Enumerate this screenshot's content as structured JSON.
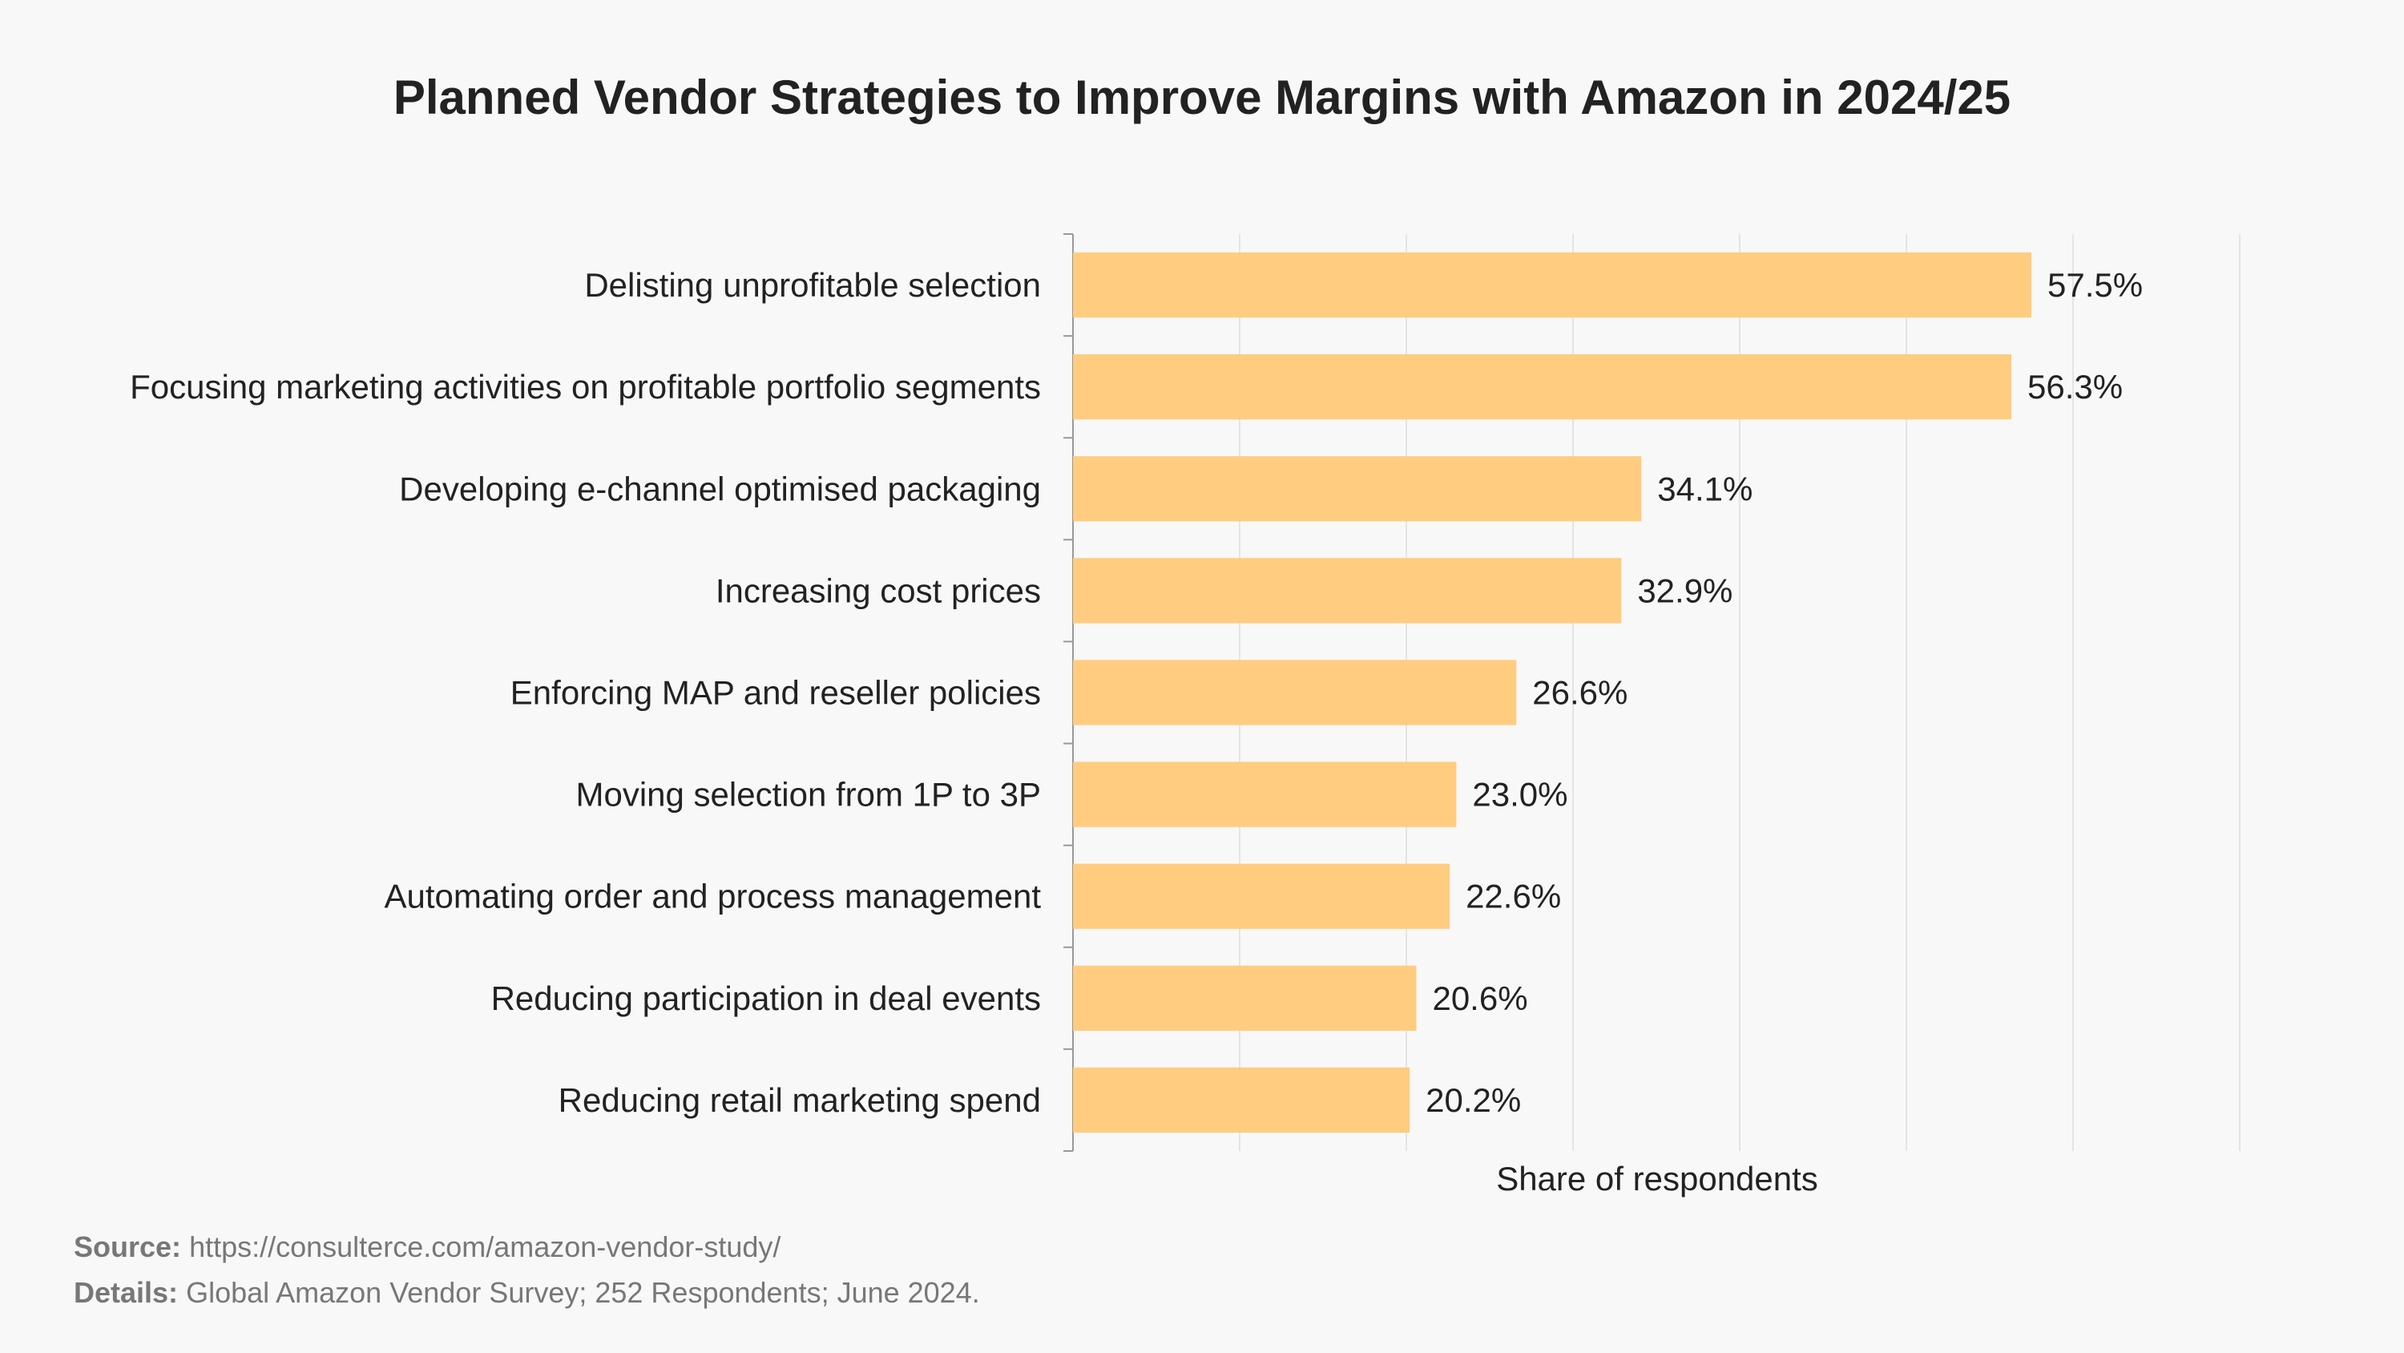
{
  "chart_data": {
    "type": "bar",
    "orientation": "horizontal",
    "title": "Planned Vendor Strategies to Improve Margins with Amazon in 2024/25",
    "xlabel": "Share of respondents",
    "ylabel": "",
    "xlim": [
      0,
      70
    ],
    "grid": true,
    "bar_color": "#ffcc80",
    "categories": [
      "Delisting unprofitable selection",
      "Focusing marketing activities on profitable portfolio segments",
      "Developing e-channel optimised packaging",
      "Increasing cost prices",
      "Enforcing MAP and reseller policies",
      "Moving selection from 1P to 3P",
      "Automating order and process management",
      "Reducing participation in deal events",
      "Reducing retail marketing spend"
    ],
    "values": [
      57.5,
      56.3,
      34.1,
      32.9,
      26.6,
      23.0,
      22.6,
      20.6,
      20.2
    ],
    "value_labels": [
      "57.5%",
      "56.3%",
      "34.1%",
      "32.9%",
      "26.6%",
      "23.0%",
      "22.6%",
      "20.6%",
      "20.2%"
    ]
  },
  "footer": {
    "source_label": "Source:",
    "source_text": "https://consulterce.com/amazon-vendor-study/",
    "details_label": "Details:",
    "details_text": "Global Amazon Vendor Survey; 252 Respondents; June 2024."
  }
}
